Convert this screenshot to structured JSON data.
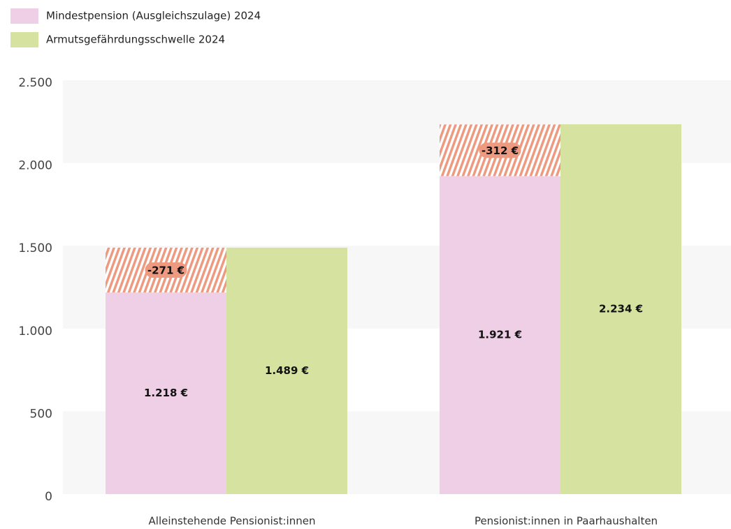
{
  "chart_data": {
    "type": "bar",
    "categories": [
      "Alleinstehende Pensionist:innen",
      "Pensionist:innen in Paarhaushalten"
    ],
    "series": [
      {
        "name": "Mindestpension (Ausgleichszulage) 2024",
        "color": "#efcfe5",
        "values": [
          1218,
          1921
        ],
        "value_labels": [
          "1.218 €",
          "1.921 €"
        ]
      },
      {
        "name": "Armutsgefährdungsschwelle 2024",
        "color": "#d6e2a0",
        "values": [
          1489,
          2234
        ],
        "value_labels": [
          "1.489 €",
          "2.234 €"
        ]
      }
    ],
    "gap": {
      "color": "#ee9a80",
      "values": [
        -271,
        -312
      ],
      "value_labels": [
        "-271 €",
        "-312 €"
      ]
    },
    "ylim": [
      0,
      2500
    ],
    "yticks": [
      0,
      500,
      {
        "value": 1000,
        "label": "1.000"
      },
      {
        "value": 1500,
        "label": "1.500"
      },
      {
        "value": 2000,
        "label": "2.000"
      },
      {
        "value": 2500,
        "label": "2.500"
      }
    ],
    "grid": true
  }
}
